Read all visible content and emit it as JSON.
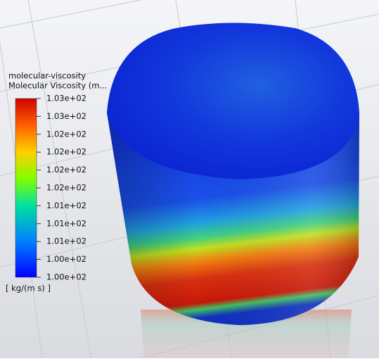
{
  "legend": {
    "title": "molecular-viscosity",
    "subtitle": "Molecular Viscosity (m...",
    "ticks": [
      "1.03e+02",
      "1.03e+02",
      "1.02e+02",
      "1.02e+02",
      "1.02e+02",
      "1.02e+02",
      "1.01e+02",
      "1.01e+02",
      "1.01e+02",
      "1.00e+02",
      "1.00e+02"
    ],
    "units": "[ kg/(m s) ]"
  }
}
